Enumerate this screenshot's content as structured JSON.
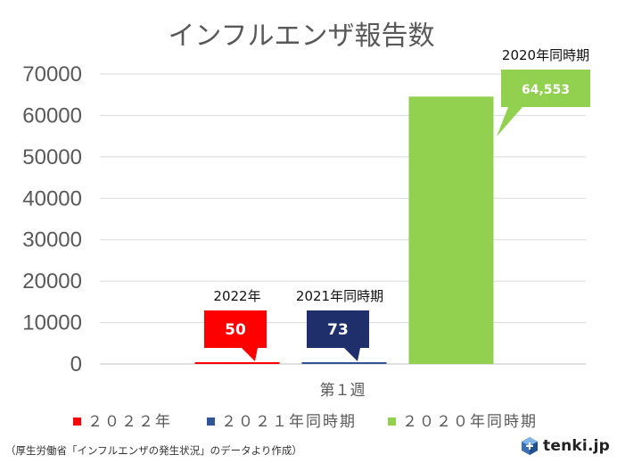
{
  "chart_data": {
    "type": "bar",
    "title": "インフルエンザ報告数",
    "categories": [
      "第１週"
    ],
    "ylim": [
      0,
      70000
    ],
    "yticks": [
      "0",
      "10000",
      "20000",
      "30000",
      "40000",
      "50000",
      "60000",
      "70000"
    ],
    "grid": true,
    "legend_position": "bottom",
    "series": [
      {
        "name": "２０２２年",
        "values": [
          50
        ],
        "color": "#ff0000",
        "label_top": "2022年",
        "data_label": "50",
        "label_bg": "#ff0000"
      },
      {
        "name": "２０２１年同時期",
        "values": [
          73
        ],
        "color": "#2f5597",
        "label_top": "2021年同時期",
        "data_label": "73",
        "label_bg": "#1f2f6b"
      },
      {
        "name": "２０２０年同時期",
        "values": [
          64553
        ],
        "color": "#92d050",
        "label_top": "2020年同時期",
        "data_label": "64,553",
        "label_bg": "#92d050"
      }
    ]
  },
  "source_note": "（厚生労働省「インフルエンザの発生状況」のデータより作成）",
  "logo": {
    "text": "tenki.jp",
    "icon": "tenki-logo-icon"
  }
}
